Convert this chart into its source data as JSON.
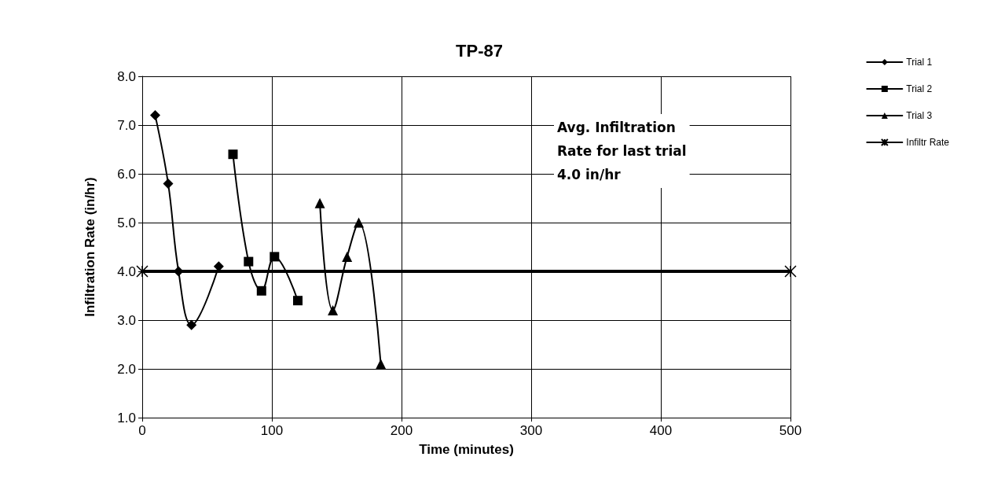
{
  "chart_data": {
    "type": "line",
    "title": "TP-87",
    "xlabel": "Time (minutes)",
    "ylabel": "Infiltration Rate (in/hr)",
    "xlim": [
      0,
      500
    ],
    "xticks": [
      0,
      100,
      200,
      300,
      400,
      500
    ],
    "ylim": [
      1,
      8
    ],
    "yticks": [
      {
        "value": 1,
        "label": "1.0"
      },
      {
        "value": 2,
        "label": "2.0"
      },
      {
        "value": 3,
        "label": "3.0"
      },
      {
        "value": 4,
        "label": "4.0"
      },
      {
        "value": 5,
        "label": "5.0"
      },
      {
        "value": 6,
        "label": "6.0"
      },
      {
        "value": 7,
        "label": "7.0"
      },
      {
        "value": 8,
        "label": "8.0"
      }
    ],
    "grid": true,
    "legend": "top right",
    "line_style": "solid",
    "annotations": [
      "Avg. Infiltration\nRate for last trial\n4.0 in/hr"
    ],
    "series": [
      {
        "name": "Trial 1",
        "color": "#000000",
        "marker": "diamond",
        "x": [
          10,
          20,
          28,
          38,
          59
        ],
        "values": [
          7.2,
          5.8,
          4.0,
          2.9,
          4.1
        ]
      },
      {
        "name": "Trial 2",
        "color": "#000000",
        "marker": "square",
        "x": [
          70,
          82,
          92,
          102,
          120
        ],
        "values": [
          6.4,
          4.2,
          3.6,
          4.3,
          3.4
        ]
      },
      {
        "name": "Trial 3",
        "color": "#000000",
        "marker": "triangle",
        "x": [
          137,
          147,
          158,
          167,
          184
        ],
        "values": [
          5.4,
          3.2,
          4.3,
          5.0,
          2.1
        ]
      },
      {
        "name": "Infiltr Rate",
        "color": "#000000",
        "marker": "cross",
        "x": [
          0,
          500
        ],
        "values": [
          4.0,
          4.0
        ]
      }
    ]
  }
}
